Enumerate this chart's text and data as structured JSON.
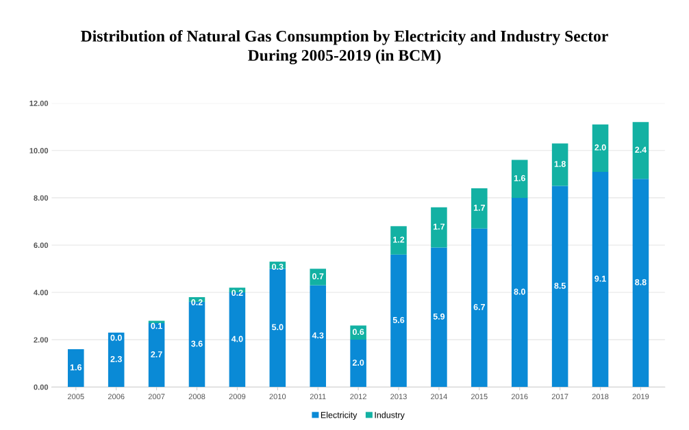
{
  "chart_data": {
    "type": "bar",
    "title": "Distribution of Natural Gas Consumption by Electricity and Industry Sector\nDuring 2005-2019 (in BCM)",
    "categories": [
      "2005",
      "2006",
      "2007",
      "2008",
      "2009",
      "2010",
      "2011",
      "2012",
      "2013",
      "2014",
      "2015",
      "2016",
      "2017",
      "2018",
      "2019"
    ],
    "stacked": true,
    "series": [
      {
        "name": "Electricity",
        "color": "#0a8ad6",
        "values": [
          1.6,
          2.3,
          2.7,
          3.6,
          4.0,
          5.0,
          4.3,
          2.0,
          5.6,
          5.9,
          6.7,
          8.0,
          8.5,
          9.1,
          8.8
        ],
        "value_labels": [
          "1.6",
          "2.3",
          "2.7",
          "3.6",
          "4.0",
          "5.0",
          "4.3",
          "2.0",
          "5.6",
          "5.9",
          "6.7",
          "8.0",
          "8.5",
          "9.1",
          "8.8"
        ]
      },
      {
        "name": "Industry",
        "color": "#13b1a3",
        "values": [
          null,
          0.0,
          0.1,
          0.2,
          0.2,
          0.3,
          0.7,
          0.6,
          1.2,
          1.7,
          1.7,
          1.6,
          1.8,
          2.0,
          2.4
        ],
        "value_labels": [
          null,
          "0.0",
          "0.1",
          "0.2",
          "0.2",
          "0.3",
          "0.7",
          "0.6",
          "1.2",
          "1.7",
          "1.7",
          "1.6",
          "1.8",
          "2.0",
          "2.4"
        ]
      }
    ],
    "ylim": [
      0,
      12
    ],
    "yticks": [
      {
        "value": 0,
        "label": "0.00"
      },
      {
        "value": 2,
        "label": "2.00"
      },
      {
        "value": 4,
        "label": "4.00"
      },
      {
        "value": 6,
        "label": "6.00"
      },
      {
        "value": 8,
        "label": "8.00"
      },
      {
        "value": 10,
        "label": "10.00"
      },
      {
        "value": 12,
        "label": "12.00"
      }
    ],
    "grid": "y",
    "legend": "bottom"
  }
}
